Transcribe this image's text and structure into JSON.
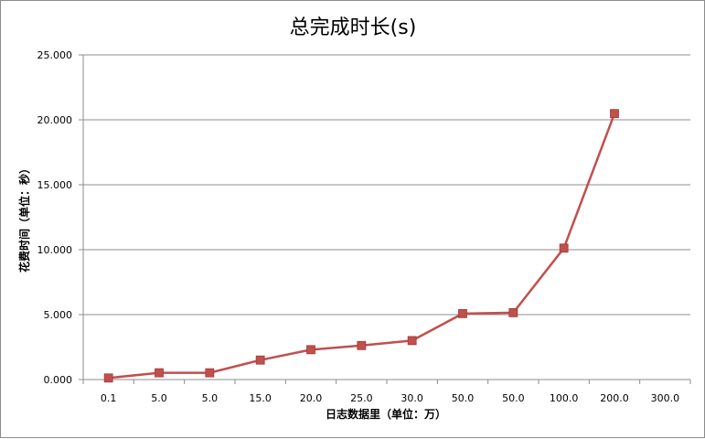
{
  "chart_data": {
    "type": "line",
    "title": "总完成时长(s)",
    "xlabel": "日志数据里（单位：万）",
    "ylabel": "花费时间（单位：秒）",
    "categories": [
      "0.1",
      "5.0",
      "5.0",
      "15.0",
      "20.0",
      "25.0",
      "30.0",
      "50.0",
      "50.0",
      "100.0",
      "200.0",
      "300.0"
    ],
    "series": [
      {
        "values": [
          0.12,
          0.52,
          0.52,
          1.5,
          2.3,
          2.62,
          3.0,
          5.08,
          5.15,
          10.12,
          20.48,
          null
        ]
      }
    ],
    "ylim": [
      0,
      25
    ],
    "yticks": [
      "0.000",
      "5.000",
      "10.000",
      "15.000",
      "20.000",
      "25.000"
    ],
    "ytick_values": [
      0,
      5,
      10,
      15,
      20,
      25
    ],
    "grid": "horizontal",
    "legend": "none",
    "colors": {
      "series": "#c0504d",
      "grid": "#8c8c8c",
      "axis": "#8c8c8c"
    }
  }
}
